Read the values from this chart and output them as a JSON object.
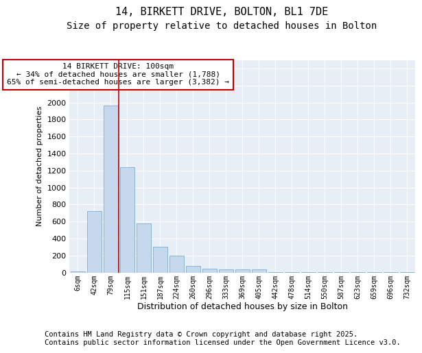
{
  "title_line1": "14, BIRKETT DRIVE, BOLTON, BL1 7DE",
  "title_line2": "Size of property relative to detached houses in Bolton",
  "xlabel": "Distribution of detached houses by size in Bolton",
  "ylabel": "Number of detached properties",
  "bar_categories": [
    "6sqm",
    "42sqm",
    "79sqm",
    "115sqm",
    "151sqm",
    "187sqm",
    "224sqm",
    "260sqm",
    "296sqm",
    "333sqm",
    "369sqm",
    "405sqm",
    "442sqm",
    "478sqm",
    "514sqm",
    "550sqm",
    "587sqm",
    "623sqm",
    "659sqm",
    "696sqm",
    "732sqm"
  ],
  "bar_values": [
    15,
    720,
    1960,
    1240,
    580,
    300,
    200,
    80,
    45,
    40,
    35,
    35,
    5,
    1,
    1,
    1,
    1,
    1,
    1,
    1,
    1
  ],
  "bar_color": "#c5d8ee",
  "bar_edgecolor": "#7bafd4",
  "ylim": [
    0,
    2500
  ],
  "yticks": [
    0,
    200,
    400,
    600,
    800,
    1000,
    1200,
    1400,
    1600,
    1800,
    2000,
    2200,
    2400
  ],
  "vline_x_index": 2.5,
  "vline_color": "#c00000",
  "annotation_text": "14 BIRKETT DRIVE: 100sqm\n← 34% of detached houses are smaller (1,788)\n65% of semi-detached houses are larger (3,382) →",
  "annotation_box_edgecolor": "#c00000",
  "plot_bg_color": "#e8eef5",
  "fig_bg_color": "#ffffff",
  "grid_color": "#ffffff",
  "footer_text": "Contains HM Land Registry data © Crown copyright and database right 2025.\nContains public sector information licensed under the Open Government Licence v3.0.",
  "title_fontsize": 11,
  "subtitle_fontsize": 10,
  "annotation_fontsize": 8,
  "footer_fontsize": 7.5,
  "ylabel_fontsize": 8,
  "xlabel_fontsize": 9
}
